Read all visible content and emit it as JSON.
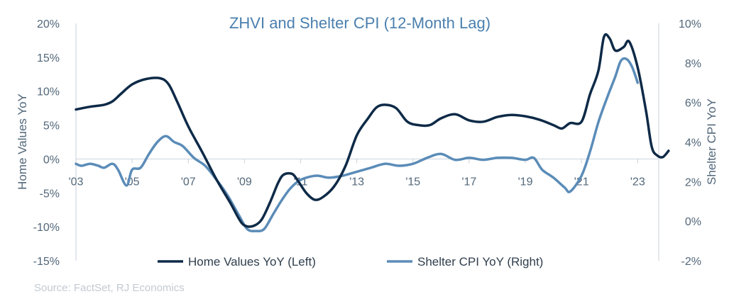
{
  "chart_data": {
    "type": "line",
    "title": "ZHVI and Shelter CPI (12-Month Lag)",
    "source": "Source: FactSet, RJ Economics",
    "x_ticks": [
      "'03",
      "'05",
      "'07",
      "'09",
      "'11",
      "'13",
      "'15",
      "'17",
      "'19",
      "'21",
      "'23"
    ],
    "x_tick_years": [
      2003,
      2005,
      2007,
      2009,
      2011,
      2013,
      2015,
      2017,
      2019,
      2021,
      2023
    ],
    "xlim": [
      2003,
      2023.7
    ],
    "left_axis": {
      "label": "Home Values YoY",
      "ylim": [
        -15,
        20
      ],
      "ticks": [
        "-15%",
        "-10%",
        "-5%",
        "0%",
        "5%",
        "10%",
        "15%",
        "20%"
      ],
      "tick_values": [
        -15,
        -10,
        -5,
        0,
        5,
        10,
        15,
        20
      ]
    },
    "right_axis": {
      "label": "Shelter CPI YoY",
      "ylim": [
        -2,
        10
      ],
      "ticks": [
        "-2%",
        "0%",
        "2%",
        "4%",
        "6%",
        "8%",
        "10%"
      ],
      "tick_values": [
        -2,
        0,
        2,
        4,
        6,
        8,
        10
      ]
    },
    "series": [
      {
        "name": "Home Values YoY (Left)",
        "axis": "left",
        "color": "#0e2a47",
        "points": [
          [
            2003.0,
            7.3
          ],
          [
            2003.5,
            7.7
          ],
          [
            2004.0,
            8.0
          ],
          [
            2004.3,
            8.5
          ],
          [
            2004.6,
            9.6
          ],
          [
            2005.0,
            11.0
          ],
          [
            2005.5,
            11.8
          ],
          [
            2006.0,
            11.9
          ],
          [
            2006.3,
            11.0
          ],
          [
            2006.6,
            8.5
          ],
          [
            2007.0,
            4.8
          ],
          [
            2007.5,
            1.0
          ],
          [
            2008.0,
            -3.0
          ],
          [
            2008.5,
            -6.5
          ],
          [
            2008.8,
            -8.8
          ],
          [
            2009.0,
            -9.8
          ],
          [
            2009.3,
            -9.9
          ],
          [
            2009.6,
            -9.0
          ],
          [
            2009.9,
            -6.5
          ],
          [
            2010.2,
            -3.5
          ],
          [
            2010.4,
            -2.3
          ],
          [
            2010.7,
            -2.2
          ],
          [
            2010.9,
            -3.2
          ],
          [
            2011.2,
            -5.0
          ],
          [
            2011.5,
            -6.0
          ],
          [
            2011.8,
            -5.6
          ],
          [
            2012.2,
            -4.0
          ],
          [
            2012.6,
            -1.0
          ],
          [
            2013.0,
            3.5
          ],
          [
            2013.4,
            6.0
          ],
          [
            2013.7,
            7.6
          ],
          [
            2014.0,
            8.0
          ],
          [
            2014.4,
            7.5
          ],
          [
            2014.8,
            5.5
          ],
          [
            2015.2,
            5.0
          ],
          [
            2015.6,
            5.0
          ],
          [
            2016.0,
            6.0
          ],
          [
            2016.5,
            6.6
          ],
          [
            2017.0,
            5.7
          ],
          [
            2017.5,
            5.5
          ],
          [
            2018.0,
            6.2
          ],
          [
            2018.5,
            6.5
          ],
          [
            2019.0,
            6.3
          ],
          [
            2019.5,
            5.8
          ],
          [
            2020.0,
            5.0
          ],
          [
            2020.3,
            4.5
          ],
          [
            2020.6,
            5.3
          ],
          [
            2021.0,
            5.5
          ],
          [
            2021.3,
            9.5
          ],
          [
            2021.6,
            13.0
          ],
          [
            2021.8,
            18.0
          ],
          [
            2022.0,
            17.8
          ],
          [
            2022.2,
            16.0
          ],
          [
            2022.5,
            16.5
          ],
          [
            2022.7,
            17.3
          ],
          [
            2023.0,
            13.5
          ],
          [
            2023.3,
            7.0
          ],
          [
            2023.5,
            1.8
          ],
          [
            2023.7,
            0.5
          ],
          [
            2023.9,
            0.3
          ],
          [
            2024.1,
            1.2
          ]
        ]
      },
      {
        "name": "Shelter CPI YoY (Right)",
        "axis": "right",
        "color": "#5b8cb8",
        "points": [
          [
            2003.0,
            2.9
          ],
          [
            2003.2,
            2.8
          ],
          [
            2003.5,
            2.9
          ],
          [
            2003.8,
            2.8
          ],
          [
            2004.0,
            2.7
          ],
          [
            2004.3,
            2.9
          ],
          [
            2004.5,
            2.6
          ],
          [
            2004.8,
            1.8
          ],
          [
            2005.0,
            2.6
          ],
          [
            2005.3,
            2.7
          ],
          [
            2005.6,
            3.4
          ],
          [
            2005.9,
            4.0
          ],
          [
            2006.2,
            4.3
          ],
          [
            2006.5,
            4.0
          ],
          [
            2006.8,
            3.8
          ],
          [
            2007.2,
            3.2
          ],
          [
            2007.6,
            2.8
          ],
          [
            2008.0,
            2.1
          ],
          [
            2008.4,
            1.3
          ],
          [
            2008.8,
            0.3
          ],
          [
            2009.1,
            -0.4
          ],
          [
            2009.4,
            -0.5
          ],
          [
            2009.7,
            -0.4
          ],
          [
            2010.0,
            0.3
          ],
          [
            2010.3,
            1.0
          ],
          [
            2010.6,
            1.6
          ],
          [
            2010.9,
            2.0
          ],
          [
            2011.2,
            2.2
          ],
          [
            2011.6,
            2.3
          ],
          [
            2012.0,
            2.2
          ],
          [
            2012.5,
            2.3
          ],
          [
            2013.0,
            2.5
          ],
          [
            2013.5,
            2.7
          ],
          [
            2014.0,
            2.9
          ],
          [
            2014.5,
            2.8
          ],
          [
            2015.0,
            2.9
          ],
          [
            2015.5,
            3.2
          ],
          [
            2016.0,
            3.4
          ],
          [
            2016.5,
            3.1
          ],
          [
            2017.0,
            3.2
          ],
          [
            2017.5,
            3.1
          ],
          [
            2018.0,
            3.2
          ],
          [
            2018.5,
            3.2
          ],
          [
            2019.0,
            3.1
          ],
          [
            2019.3,
            3.2
          ],
          [
            2019.6,
            2.6
          ],
          [
            2020.0,
            2.2
          ],
          [
            2020.4,
            1.7
          ],
          [
            2020.6,
            1.5
          ],
          [
            2021.0,
            2.3
          ],
          [
            2021.3,
            3.5
          ],
          [
            2021.6,
            5.0
          ],
          [
            2021.9,
            6.2
          ],
          [
            2022.2,
            7.3
          ],
          [
            2022.4,
            8.1
          ],
          [
            2022.6,
            8.2
          ],
          [
            2022.8,
            7.8
          ],
          [
            2023.0,
            7.0
          ]
        ]
      }
    ],
    "legend_position": "bottom",
    "grid": false
  }
}
